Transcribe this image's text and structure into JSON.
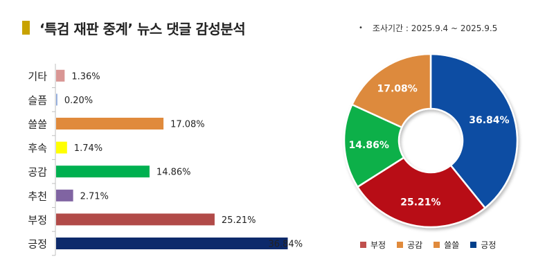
{
  "title": "‘특검 재판 중계’ 뉴스 댓글 감성분석",
  "period": "조사기간 : 2025.9.4 ~ 2025.9.5",
  "chart_data": [
    {
      "type": "bar",
      "orientation": "horizontal",
      "categories": [
        "기타",
        "슬픔",
        "쓸쓸",
        "후속",
        "공감",
        "추천",
        "부정",
        "긍정"
      ],
      "values": [
        1.36,
        0.2,
        17.08,
        1.74,
        14.86,
        2.71,
        25.21,
        36.84
      ],
      "data_labels": [
        "1.36%",
        "0.20%",
        "17.08%",
        "1.74%",
        "14.86%",
        "2.71%",
        "25.21%",
        "36.84%"
      ],
      "colors": [
        "#d99694",
        "#8ea9db",
        "#e08a3c",
        "#ffff00",
        "#00b050",
        "#8064a2",
        "#b14a48",
        "#0d2a6b"
      ],
      "xlim": [
        0,
        40
      ],
      "grid": false,
      "title": "",
      "xlabel": "",
      "ylabel": ""
    },
    {
      "type": "pie",
      "donut": true,
      "categories": [
        "긍정",
        "부정",
        "공감",
        "쓸쓸"
      ],
      "values": [
        36.84,
        25.21,
        14.86,
        17.08
      ],
      "data_labels": [
        "36.84%",
        "25.21%",
        "14.86%",
        "17.08%"
      ],
      "colors": [
        "#0a4ea3",
        "#b80f14",
        "#0fb04a",
        "#dd8a3c"
      ],
      "legend": {
        "placement": "bottom",
        "items": [
          "부정",
          "공감",
          "쓸쓸",
          "긍정"
        ],
        "colors": [
          "#c0504d",
          "#e08a3c",
          "#e08a3c",
          "#003f8a"
        ]
      }
    }
  ]
}
